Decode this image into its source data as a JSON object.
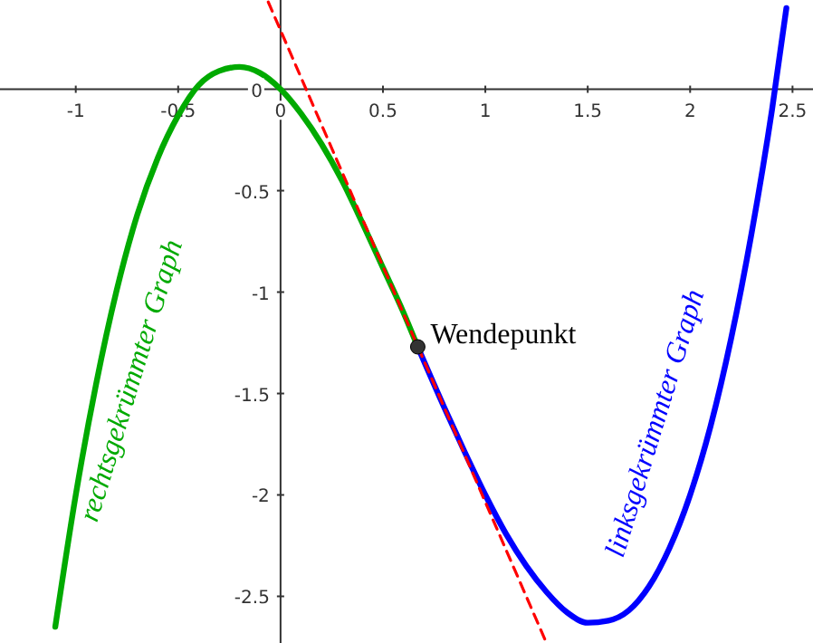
{
  "chart_data": {
    "type": "line",
    "xlim": [
      -1.37,
      2.6
    ],
    "ylim": [
      -2.73,
      0.44
    ],
    "xticks": [
      -1,
      -0.5,
      0,
      0.5,
      1,
      1.5,
      2,
      2.5
    ],
    "yticks": [
      -2.5,
      -2,
      -1.5,
      -1,
      -0.5,
      0
    ],
    "series": [
      {
        "name": "rechtsgekrümmter Graph",
        "color": "#00aa00",
        "x": [
          -1.1,
          -1.0,
          -0.9,
          -0.8,
          -0.7,
          -0.6,
          -0.5,
          -0.4,
          -0.3,
          -0.2,
          -0.1,
          0,
          0.1,
          0.2,
          0.3,
          0.4,
          0.5,
          0.6,
          0.67
        ],
        "values": [
          -2.65,
          -2,
          -1.45,
          -0.99,
          -0.62,
          -0.34,
          -0.13,
          0.02,
          0.09,
          0.11,
          0.08,
          0,
          -0.12,
          -0.27,
          -0.45,
          -0.66,
          -0.88,
          -1.1,
          -1.27
        ]
      },
      {
        "name": "linksgekrümmter Graph",
        "color": "#0000ff",
        "x": [
          0.67,
          0.8,
          0.9,
          1.0,
          1.1,
          1.2,
          1.3,
          1.4,
          1.5,
          1.6,
          1.7,
          1.8,
          1.9,
          2.0,
          2.1,
          2.2,
          2.3,
          2.4,
          2.47
        ],
        "values": [
          -1.27,
          -1.57,
          -1.79,
          -2,
          -2.19,
          -2.35,
          -2.48,
          -2.58,
          -2.63,
          -2.62,
          -2.57,
          -2.45,
          -2.26,
          -2,
          -1.66,
          -1.23,
          -0.71,
          -0.1,
          0.4
        ]
      },
      {
        "color": "#ff0000",
        "line_style": "dashed",
        "x": [
          -0.06,
          1.29
        ],
        "values": [
          0.43,
          -2.71
        ]
      },
      {
        "type": "scatter",
        "color": "#333333",
        "marker": "circle",
        "x": [
          0.67
        ],
        "values": [
          -1.27
        ]
      }
    ],
    "annotations": [
      {
        "text": "Wendepunkt",
        "x": 0.67,
        "y": -1.27
      }
    ]
  }
}
